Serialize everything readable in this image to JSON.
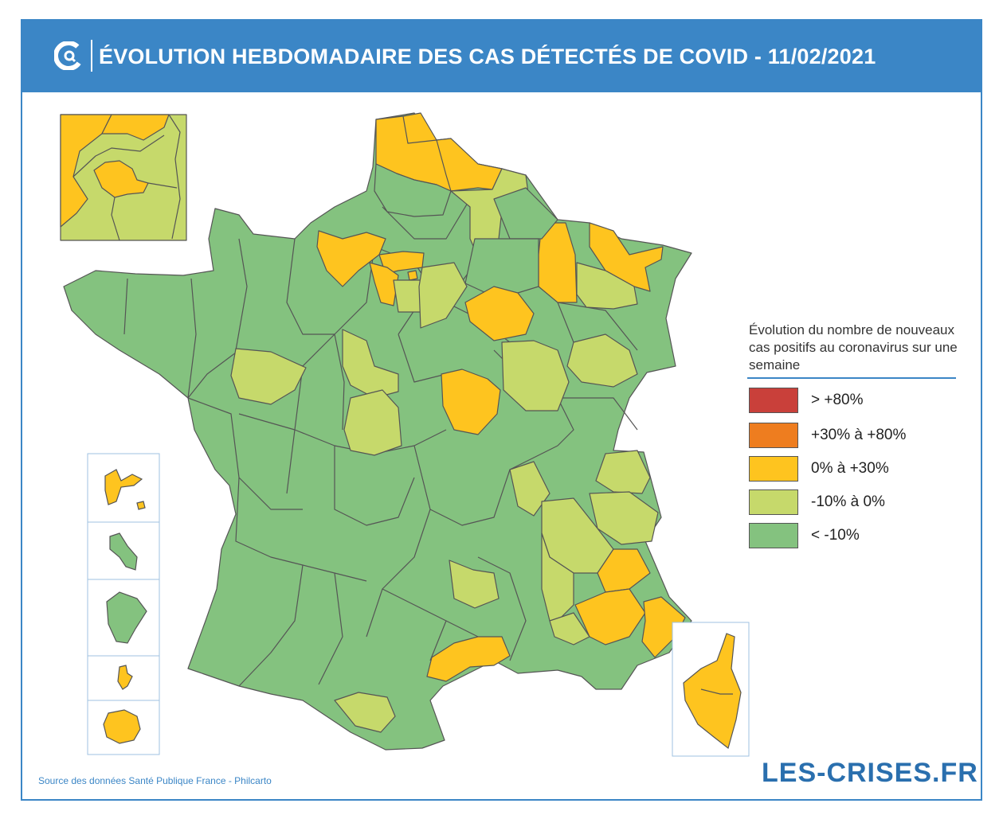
{
  "header": {
    "title": "ÉVOLUTION HEBDOMADAIRE DES CAS DÉTECTÉS DE COVID - 11/02/2021",
    "logo_icon": "les-crises-c-logo"
  },
  "legend": {
    "title": "Évolution du nombre de nouveaux cas positifs au coronavirus sur une semaine",
    "items": [
      {
        "label": "> +80%",
        "color": "#c9403a"
      },
      {
        "label": "+30% à +80%",
        "color": "#ee7d1f"
      },
      {
        "label": "0% à +30%",
        "color": "#fec41f"
      },
      {
        "label": "-10% à 0%",
        "color": "#c6d96b"
      },
      {
        "label": "< -10%",
        "color": "#84c27f"
      }
    ]
  },
  "colors": {
    "accent": "#3b86c6",
    "border": "#555555"
  },
  "footer": {
    "source": "Source des données Santé Publique France - Philcarto",
    "brand": "LES-CRISES.FR"
  }
}
